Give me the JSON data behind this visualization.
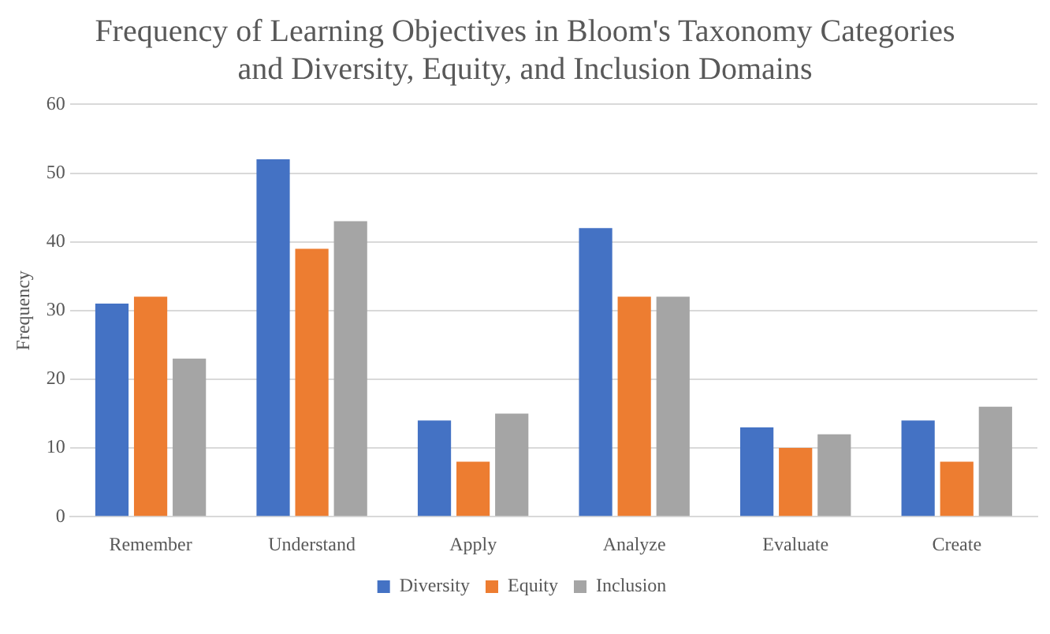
{
  "chart_data": {
    "type": "bar",
    "title": "Frequency of Learning Objectives in Bloom's Taxonomy Categories and Diversity, Equity, and Inclusion Domains",
    "ylabel": "Frequency",
    "categories": [
      "Remember",
      "Understand",
      "Apply",
      "Analyze",
      "Evaluate",
      "Create"
    ],
    "series": [
      {
        "name": "Diversity",
        "color": "#4472c4",
        "values": [
          31,
          52,
          14,
          42,
          13,
          14
        ]
      },
      {
        "name": "Equity",
        "color": "#ed7d31",
        "values": [
          32,
          39,
          8,
          32,
          10,
          8
        ]
      },
      {
        "name": "Inclusion",
        "color": "#a5a5a5",
        "values": [
          23,
          43,
          15,
          32,
          12,
          16
        ]
      }
    ],
    "ylim": [
      0,
      60
    ],
    "yticks": [
      0,
      10,
      20,
      30,
      40,
      50,
      60
    ],
    "grid": "y",
    "legend": "bottom"
  }
}
